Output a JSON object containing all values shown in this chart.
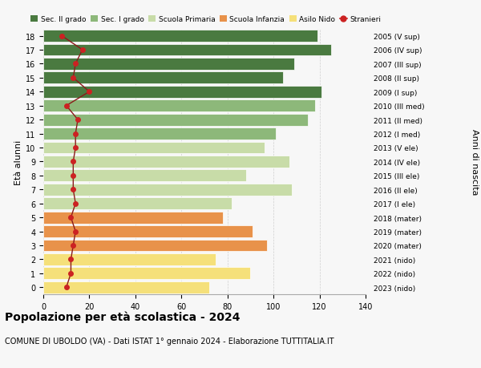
{
  "ages": [
    0,
    1,
    2,
    3,
    4,
    5,
    6,
    7,
    8,
    9,
    10,
    11,
    12,
    13,
    14,
    15,
    16,
    17,
    18
  ],
  "years": [
    "2023 (nido)",
    "2022 (nido)",
    "2021 (nido)",
    "2020 (mater)",
    "2019 (mater)",
    "2018 (mater)",
    "2017 (I ele)",
    "2016 (II ele)",
    "2015 (III ele)",
    "2014 (IV ele)",
    "2013 (V ele)",
    "2012 (I med)",
    "2011 (II med)",
    "2010 (III med)",
    "2009 (I sup)",
    "2008 (II sup)",
    "2007 (III sup)",
    "2006 (IV sup)",
    "2005 (V sup)"
  ],
  "bar_values": [
    72,
    90,
    75,
    97,
    91,
    78,
    82,
    108,
    88,
    107,
    96,
    101,
    115,
    118,
    121,
    104,
    109,
    125,
    119
  ],
  "bar_colors": [
    "#f5e07a",
    "#f5e07a",
    "#f5e07a",
    "#e8924a",
    "#e8924a",
    "#e8924a",
    "#c8dca8",
    "#c8dca8",
    "#c8dca8",
    "#c8dca8",
    "#c8dca8",
    "#8db87a",
    "#8db87a",
    "#8db87a",
    "#4a7a40",
    "#4a7a40",
    "#4a7a40",
    "#4a7a40",
    "#4a7a40"
  ],
  "stranieri_values": [
    10,
    12,
    12,
    13,
    14,
    12,
    14,
    13,
    13,
    13,
    14,
    14,
    15,
    10,
    20,
    13,
    14,
    17,
    8
  ],
  "legend_labels": [
    "Sec. II grado",
    "Sec. I grado",
    "Scuola Primaria",
    "Scuola Infanzia",
    "Asilo Nido",
    "Stranieri"
  ],
  "legend_colors": [
    "#4a7a40",
    "#8db87a",
    "#c8dca8",
    "#e8924a",
    "#f5e07a",
    "#cc2222"
  ],
  "ylabel_left": "Età alunni",
  "ylabel_right": "Anni di nascita",
  "title": "Popolazione per età scolastica - 2024",
  "subtitle": "COMUNE DI UBOLDO (VA) - Dati ISTAT 1° gennaio 2024 - Elaborazione TUTTITALIA.IT",
  "xlim": [
    0,
    140
  ],
  "xticks": [
    0,
    20,
    40,
    60,
    80,
    100,
    120,
    140
  ],
  "background_color": "#f7f7f7",
  "grid_color": "#d0d0d0"
}
